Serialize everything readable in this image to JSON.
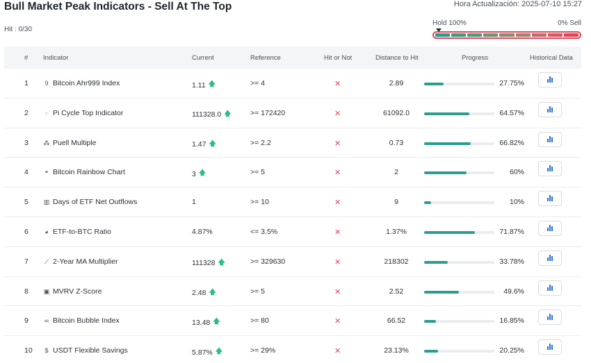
{
  "header": {
    "title": "Bull Market Peak Indicators - Sell At The Top",
    "timestamp": "Hora Actualización: 2025-07-10 15:27",
    "hit_count": "Hit : 0/30"
  },
  "gauge": {
    "left_label": "Hold 100%",
    "right_label": "0% Sell",
    "segment_colors": [
      "#2a9d8f",
      "#3a9e82",
      "#4f9a7c",
      "#6a9474",
      "#8a8b70",
      "#a77f70",
      "#c06c6d",
      "#d45a66",
      "#e0455a"
    ]
  },
  "columns": {
    "num": "#",
    "indicator": "Indicator",
    "current": "Current",
    "reference": "Reference",
    "hit": "Hit or Not",
    "distance": "Distance to Hit",
    "progress": "Progress",
    "historical": "Historical Data"
  },
  "rows": [
    {
      "num": "1",
      "icon": "9",
      "name": "Bitcoin Ahr999 Index",
      "current": "1.11",
      "up": "🡅",
      "reference": ">= 4",
      "hit": "✕",
      "distance": "2.89",
      "progress": 0.2775,
      "pct": "27.75%"
    },
    {
      "num": "2",
      "icon": "◌",
      "name": "Pi Cycle Top Indicator",
      "current": "111328.0",
      "up": "🡅",
      "reference": ">= 172420",
      "hit": "✕",
      "distance": "61092.0",
      "progress": 0.6457,
      "pct": "64.57%"
    },
    {
      "num": "3",
      "icon": "⁂",
      "name": "Puell Multiple",
      "current": "1.47",
      "up": "🡅",
      "reference": ">= 2.2",
      "hit": "✕",
      "distance": "0.73",
      "progress": 0.6682,
      "pct": "66.82%"
    },
    {
      "num": "4",
      "icon": "◓",
      "name": "Bitcoin Rainbow Chart",
      "current": "3",
      "up": "🡅",
      "reference": ">= 5",
      "hit": "✕",
      "distance": "2",
      "progress": 0.6,
      "pct": "60%"
    },
    {
      "num": "5",
      "icon": "▥",
      "name": "Days of ETF Net Outflows",
      "current": "1",
      "up": "",
      "reference": ">= 10",
      "hit": "✕",
      "distance": "9",
      "progress": 0.1,
      "pct": "10%"
    },
    {
      "num": "6",
      "icon": "◕",
      "name": "ETF-to-BTC Ratio",
      "current": "4.87%",
      "up": "",
      "reference": "<= 3.5%",
      "hit": "✕",
      "distance": "1.37%",
      "progress": 0.7187,
      "pct": "71.87%"
    },
    {
      "num": "7",
      "icon": "⟋",
      "name": "2-Year MA Multiplier",
      "current": "111328",
      "up": "🡅",
      "reference": ">= 329630",
      "hit": "✕",
      "distance": "218302",
      "progress": 0.3378,
      "pct": "33.78%"
    },
    {
      "num": "8",
      "icon": "▣",
      "name": "MVRV Z-Score",
      "current": "2.48",
      "up": "🡅",
      "reference": ">= 5",
      "hit": "✕",
      "distance": "2.52",
      "progress": 0.496,
      "pct": "49.6%"
    },
    {
      "num": "9",
      "icon": "∞",
      "name": "Bitcoin Bubble Index",
      "current": "13.48",
      "up": "🡅",
      "reference": ">= 80",
      "hit": "✕",
      "distance": "66.52",
      "progress": 0.1685,
      "pct": "16.85%"
    },
    {
      "num": "10",
      "icon": "$",
      "name": "USDT Flexible Savings",
      "current": "5.87%",
      "up": "🡅",
      "reference": ">= 29%",
      "hit": "✕",
      "distance": "23.13%",
      "progress": 0.2025,
      "pct": "20.25%"
    }
  ]
}
